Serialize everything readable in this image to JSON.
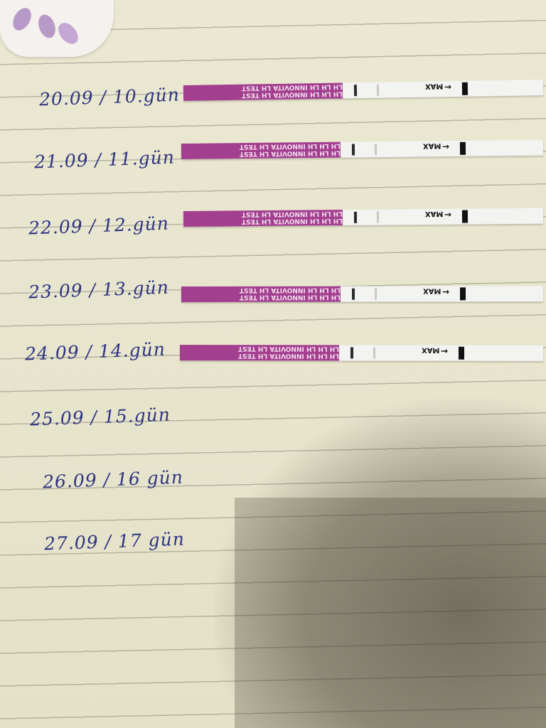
{
  "entries": [
    {
      "label": "20.09 / 10.gün",
      "strip": true
    },
    {
      "label": "21.09 / 11.gün",
      "strip": true
    },
    {
      "label": "22.09 / 12.gün",
      "strip": true
    },
    {
      "label": "23.09 / 13.gün",
      "strip": true
    },
    {
      "label": "24.09 / 14.gün",
      "strip": true
    },
    {
      "label": "25.09 / 15.gün",
      "strip": false
    },
    {
      "label": "26.09 / 16 gün",
      "strip": false
    },
    {
      "label": "27.09 / 17 gün",
      "strip": false
    }
  ],
  "strip_text": {
    "brand_line_1": "LH LH LH INNOVITA LH TEST",
    "brand_line_2": "LH LH LH INNOVITA LH TEST",
    "max_label": "MAX",
    "arrow": "→"
  },
  "colors": {
    "ink": "#2e3480",
    "strip_pink": "#a33f8f",
    "paper": "#e9e6cf"
  }
}
